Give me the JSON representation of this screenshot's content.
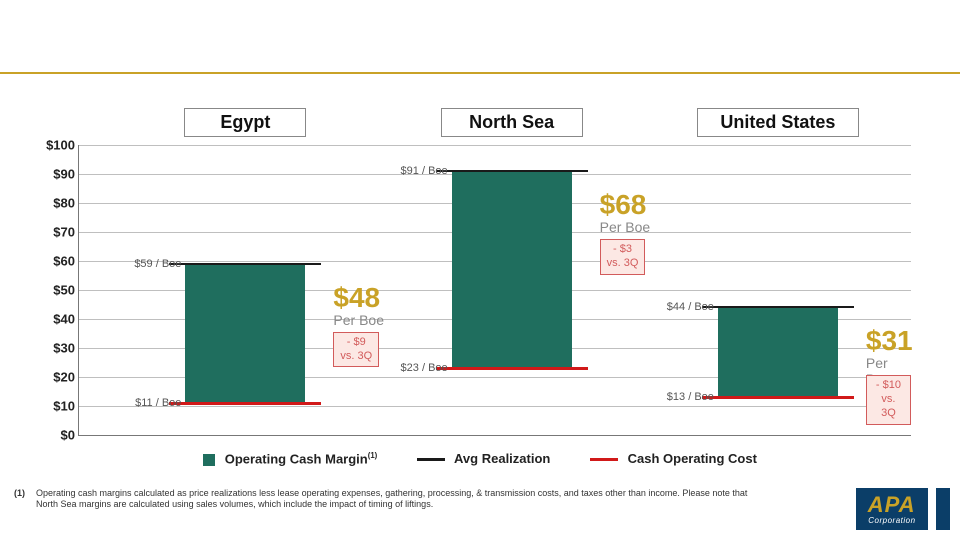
{
  "rule_color": "#c9a227",
  "chart": {
    "y": {
      "min": 0,
      "max": 100,
      "step": 10,
      "prefix": "$"
    },
    "colors": {
      "bar": "#1f6e5e",
      "avg_realization": "#1a1a1a",
      "cash_op_cost": "#d11919",
      "grid": "#bfbfbf",
      "margin_value": "#c9a227",
      "margin_sub": "#888888",
      "delta_border": "#d25b5b",
      "delta_bg": "#fce8e4"
    },
    "regions": [
      {
        "name": "Egypt",
        "top_val": 59,
        "bottom_val": 11,
        "top_label": "$59 / Boe",
        "bottom_label": "$11 / Boe",
        "margin": "$48",
        "margin_fontsize": 28,
        "sub": "Per Boe",
        "delta_line1": "- $9",
        "delta_line2": "vs. 3Q"
      },
      {
        "name": "North Sea",
        "top_val": 91,
        "bottom_val": 23,
        "top_label": "$91 / Boe",
        "bottom_label": "$23 / Boe",
        "margin": "$68",
        "margin_fontsize": 28,
        "sub": "Per Boe",
        "delta_line1": "- $3",
        "delta_line2": "vs. 3Q"
      },
      {
        "name": "United States",
        "top_val": 44,
        "bottom_val": 13,
        "top_label": "$44 / Boe",
        "bottom_label": "$13 / Boe",
        "margin": "$31",
        "margin_fontsize": 28,
        "sub": "Per Boe",
        "delta_line1": "- $10",
        "delta_line2": "vs. 3Q"
      }
    ],
    "legend": {
      "margin": "Operating Cash Margin",
      "margin_sup": "(1)",
      "avg": "Avg Realization",
      "cost": "Cash Operating Cost"
    }
  },
  "footnote": {
    "num": "(1)",
    "text": "Operating cash margins calculated as price realizations less lease operating expenses, gathering, processing, & transmission costs, and taxes other than income. Please note that North Sea margins are calculated using sales volumes, which include the impact of timing of liftings."
  },
  "logo": {
    "main": "APA",
    "sub": "Corporation"
  }
}
